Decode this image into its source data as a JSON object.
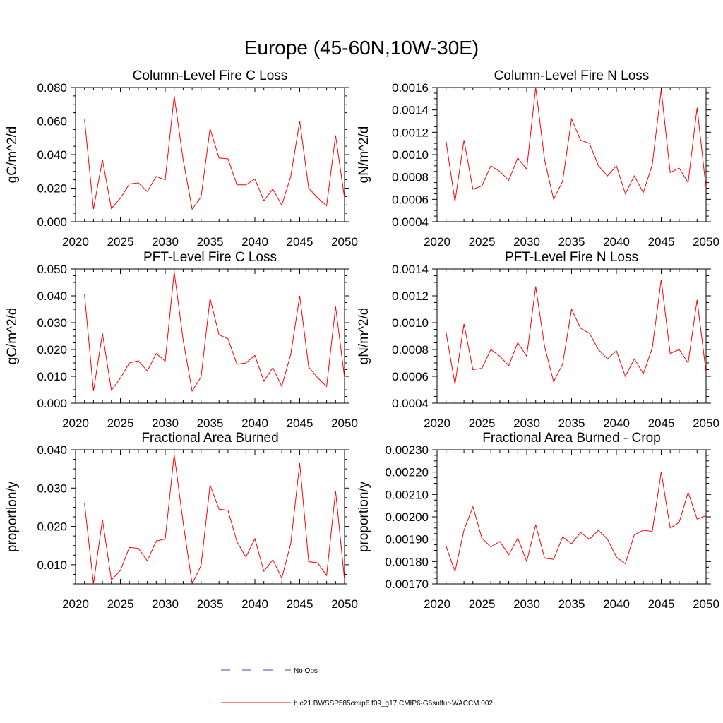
{
  "title": "Europe (45-60N,10W-30E)",
  "colors": {
    "series": "#ff0000",
    "obs": "#4a4aaa",
    "axis": "#000000"
  },
  "legend": [
    {
      "label": "No Obs",
      "style": "dashed",
      "color": "#4a4aaa"
    },
    {
      "label": "b.e21.BWSSP585cmip6.f09_g17.CMIP6-G6sulfur-WACCM.002",
      "style": "solid",
      "color": "#ff0000"
    }
  ],
  "chart_data": [
    {
      "type": "line",
      "title": "Column-Level Fire C Loss",
      "xlabel": "",
      "ylabel": "gC/m^2/d",
      "xlim": [
        2020,
        2050
      ],
      "ylim": [
        0.0,
        0.08
      ],
      "xticks": [
        "2020",
        "2025",
        "2030",
        "2035",
        "2040",
        "2045",
        "2050"
      ],
      "yticks": [
        "0.000",
        "0.020",
        "0.040",
        "0.060",
        "0.080"
      ],
      "x": [
        2021,
        2022,
        2023,
        2024,
        2025,
        2026,
        2027,
        2028,
        2029,
        2030,
        2031,
        2032,
        2033,
        2034,
        2035,
        2036,
        2037,
        2038,
        2039,
        2040,
        2041,
        2042,
        2043,
        2044,
        2045,
        2046,
        2047,
        2048,
        2049,
        2050
      ],
      "series": [
        {
          "values": [
            0.061,
            0.0075,
            0.037,
            0.0078,
            0.014,
            0.0225,
            0.0232,
            0.018,
            0.027,
            0.025,
            0.075,
            0.037,
            0.0075,
            0.0148,
            0.0555,
            0.038,
            0.0375,
            0.022,
            0.022,
            0.0255,
            0.0125,
            0.0195,
            0.0098,
            0.027,
            0.06,
            0.02,
            0.0142,
            0.0095,
            0.0515,
            0.014
          ]
        }
      ]
    },
    {
      "type": "line",
      "title": "Column-Level Fire N Loss",
      "xlabel": "",
      "ylabel": "gN/m^2/d",
      "xlim": [
        2020,
        2050
      ],
      "ylim": [
        0.0004,
        0.0016
      ],
      "xticks": [
        "2020",
        "2025",
        "2030",
        "2035",
        "2040",
        "2045",
        "2050"
      ],
      "yticks": [
        "0.0004",
        "0.0006",
        "0.0008",
        "0.0010",
        "0.0012",
        "0.0014",
        "0.0016"
      ],
      "x": [
        2021,
        2022,
        2023,
        2024,
        2025,
        2026,
        2027,
        2028,
        2029,
        2030,
        2031,
        2032,
        2033,
        2034,
        2035,
        2036,
        2037,
        2038,
        2039,
        2040,
        2041,
        2042,
        2043,
        2044,
        2045,
        2046,
        2047,
        2048,
        2049,
        2050
      ],
      "series": [
        {
          "values": [
            0.00112,
            0.00058,
            0.00113,
            0.00069,
            0.00072,
            0.0009,
            0.00085,
            0.00077,
            0.00097,
            0.00087,
            0.0016,
            0.00095,
            0.0006,
            0.00076,
            0.00132,
            0.00113,
            0.0011,
            0.0009,
            0.00081,
            0.0009,
            0.00065,
            0.00081,
            0.00066,
            0.00091,
            0.00158,
            0.00084,
            0.00088,
            0.00075,
            0.00142,
            0.0007
          ]
        }
      ]
    },
    {
      "type": "line",
      "title": "PFT-Level Fire C Loss",
      "xlabel": "",
      "ylabel": "gC/m^2/d",
      "xlim": [
        2020,
        2050
      ],
      "ylim": [
        0.0,
        0.05
      ],
      "xticks": [
        "2020",
        "2025",
        "2030",
        "2035",
        "2040",
        "2045",
        "2050"
      ],
      "yticks": [
        "0.000",
        "0.010",
        "0.020",
        "0.030",
        "0.040",
        "0.050"
      ],
      "x": [
        2021,
        2022,
        2023,
        2024,
        2025,
        2026,
        2027,
        2028,
        2029,
        2030,
        2031,
        2032,
        2033,
        2034,
        2035,
        2036,
        2037,
        2038,
        2039,
        2040,
        2041,
        2042,
        2043,
        2044,
        2045,
        2046,
        2047,
        2048,
        2049,
        2050
      ],
      "series": [
        {
          "values": [
            0.0405,
            0.0045,
            0.026,
            0.0048,
            0.0093,
            0.015,
            0.0158,
            0.012,
            0.0185,
            0.0157,
            0.049,
            0.0235,
            0.0045,
            0.0098,
            0.039,
            0.0255,
            0.024,
            0.0145,
            0.015,
            0.0178,
            0.0082,
            0.0132,
            0.0063,
            0.0182,
            0.04,
            0.0135,
            0.0095,
            0.0062,
            0.036,
            0.0095
          ]
        }
      ]
    },
    {
      "type": "line",
      "title": "PFT-Level Fire N Loss",
      "xlabel": "",
      "ylabel": "gN/m^2/d",
      "xlim": [
        2020,
        2050
      ],
      "ylim": [
        0.0004,
        0.0014
      ],
      "xticks": [
        "2020",
        "2025",
        "2030",
        "2035",
        "2040",
        "2045",
        "2050"
      ],
      "yticks": [
        "0.0004",
        "0.0006",
        "0.0008",
        "0.0010",
        "0.0012",
        "0.0014"
      ],
      "x": [
        2021,
        2022,
        2023,
        2024,
        2025,
        2026,
        2027,
        2028,
        2029,
        2030,
        2031,
        2032,
        2033,
        2034,
        2035,
        2036,
        2037,
        2038,
        2039,
        2040,
        2041,
        2042,
        2043,
        2044,
        2045,
        2046,
        2047,
        2048,
        2049,
        2050
      ],
      "series": [
        {
          "values": [
            0.00093,
            0.00054,
            0.00099,
            0.00065,
            0.00066,
            0.0008,
            0.00075,
            0.00068,
            0.00085,
            0.00075,
            0.00127,
            0.00082,
            0.00056,
            0.00069,
            0.0011,
            0.00096,
            0.00092,
            0.0008,
            0.00073,
            0.00079,
            0.0006,
            0.00073,
            0.00062,
            0.00081,
            0.00132,
            0.00077,
            0.0008,
            0.0007,
            0.00117,
            0.00063
          ]
        }
      ]
    },
    {
      "type": "line",
      "title": "Fractional Area Burned",
      "xlabel": "",
      "ylabel": "proportion/y",
      "xlim": [
        2020,
        2050
      ],
      "ylim": [
        0.005,
        0.04
      ],
      "xticks": [
        "2020",
        "2025",
        "2030",
        "2035",
        "2040",
        "2045",
        "2050"
      ],
      "yticks": [
        "0.010",
        "0.020",
        "0.030",
        "0.040"
      ],
      "ytick_values": [
        0.01,
        0.02,
        0.03,
        0.04
      ],
      "x": [
        2021,
        2022,
        2023,
        2024,
        2025,
        2026,
        2027,
        2028,
        2029,
        2030,
        2031,
        2032,
        2033,
        2034,
        2035,
        2036,
        2037,
        2038,
        2039,
        2040,
        2041,
        2042,
        2043,
        2044,
        2045,
        2046,
        2047,
        2048,
        2049,
        2050
      ],
      "series": [
        {
          "values": [
            0.026,
            0.005,
            0.0218,
            0.006,
            0.0085,
            0.0145,
            0.0143,
            0.011,
            0.0162,
            0.0167,
            0.0388,
            0.021,
            0.005,
            0.0098,
            0.0308,
            0.0245,
            0.0242,
            0.016,
            0.012,
            0.0168,
            0.0083,
            0.0113,
            0.0065,
            0.0155,
            0.0365,
            0.0108,
            0.0105,
            0.0072,
            0.0293,
            0.006
          ]
        }
      ]
    },
    {
      "type": "line",
      "title": "Fractional Area Burned - Crop",
      "xlabel": "",
      "ylabel": "proportion/y",
      "xlim": [
        2020,
        2050
      ],
      "ylim": [
        0.0017,
        0.0023
      ],
      "xticks": [
        "2020",
        "2025",
        "2030",
        "2035",
        "2040",
        "2045",
        "2050"
      ],
      "yticks": [
        "0.00170",
        "0.00180",
        "0.00190",
        "0.00200",
        "0.00210",
        "0.00220",
        "0.00230"
      ],
      "x": [
        2021,
        2022,
        2023,
        2024,
        2025,
        2026,
        2027,
        2028,
        2029,
        2030,
        2031,
        2032,
        2033,
        2034,
        2035,
        2036,
        2037,
        2038,
        2039,
        2040,
        2041,
        2042,
        2043,
        2044,
        2045,
        2046,
        2047,
        2048,
        2049,
        2050
      ],
      "series": [
        {
          "values": [
            0.00187,
            0.001755,
            0.00194,
            0.002045,
            0.001905,
            0.001865,
            0.00189,
            0.00183,
            0.001905,
            0.0018,
            0.001965,
            0.001815,
            0.00181,
            0.00191,
            0.00188,
            0.00193,
            0.0019,
            0.00194,
            0.0019,
            0.00182,
            0.00179,
            0.00192,
            0.00194,
            0.001935,
            0.0022,
            0.00195,
            0.001975,
            0.00211,
            0.00199,
            0.002005
          ]
        }
      ]
    }
  ]
}
